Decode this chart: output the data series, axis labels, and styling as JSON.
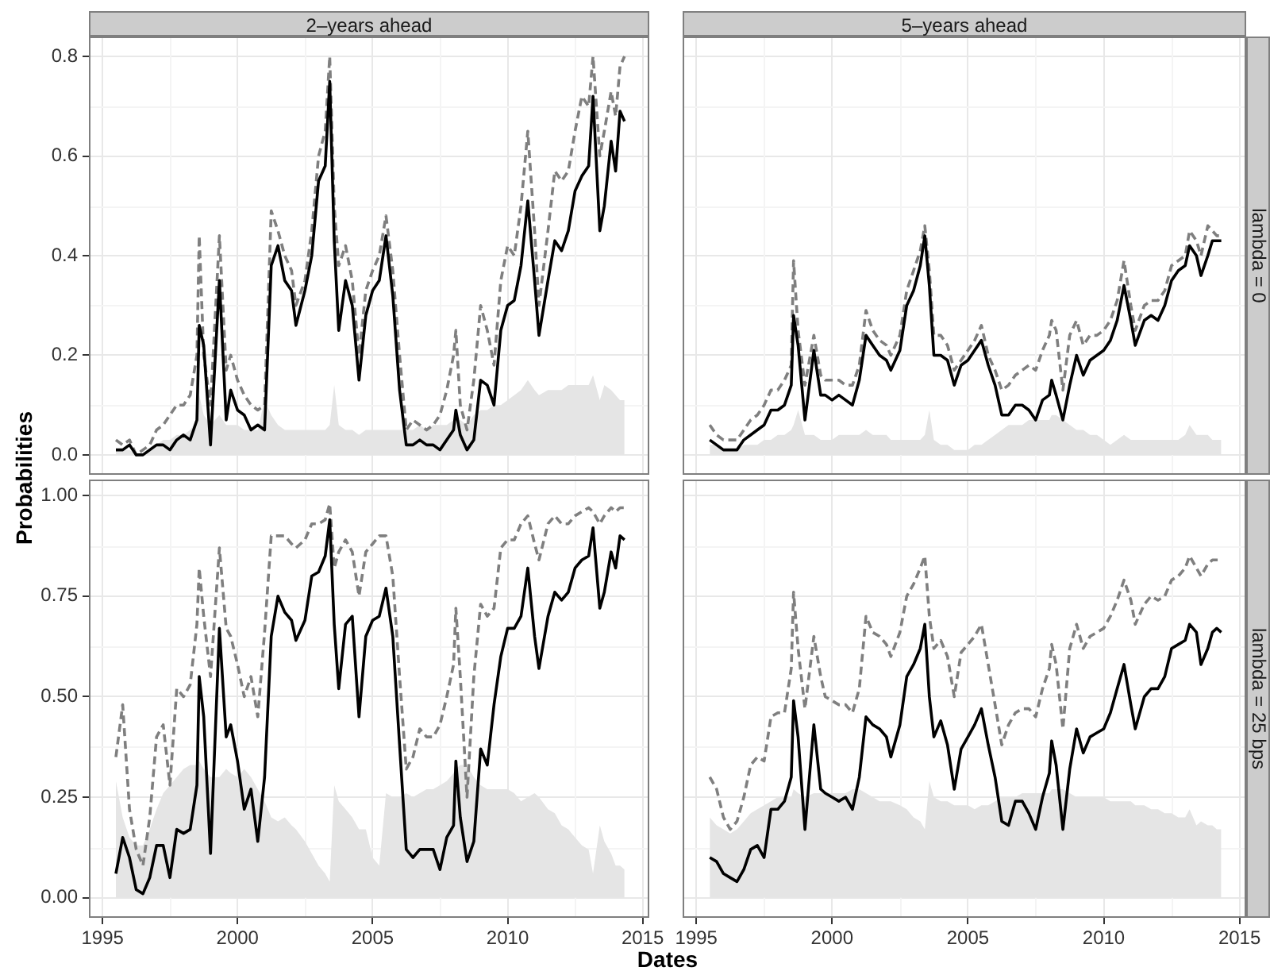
{
  "chart_data": [
    {
      "type": "line",
      "title": "2–years ahead",
      "ylabel": "Probabilities",
      "x": [
        "1995-07",
        "1995-10",
        "1996-01",
        "1996-04",
        "1996-07",
        "1996-10",
        "1997-01",
        "1997-04",
        "1997-07",
        "1997-10",
        "1998-01",
        "1998-04",
        "1998-07",
        "1998-08",
        "1998-10",
        "1999-01",
        "1999-05",
        "1999-08",
        "1999-10",
        "2000-01",
        "2000-04",
        "2000-07",
        "2000-10",
        "2001-01",
        "2001-04",
        "2001-07",
        "2001-10",
        "2002-01",
        "2002-03",
        "2002-07",
        "2002-10",
        "2003-01",
        "2003-04",
        "2003-06",
        "2003-08",
        "2003-10",
        "2004-01",
        "2004-04",
        "2004-07",
        "2004-10",
        "2005-01",
        "2005-04",
        "2005-07",
        "2005-10",
        "2006-01",
        "2006-04",
        "2006-07",
        "2006-10",
        "2007-01",
        "2007-04",
        "2007-07",
        "2007-10",
        "2008-01",
        "2008-02",
        "2008-04",
        "2008-07",
        "2008-10",
        "2009-01",
        "2009-04",
        "2009-07",
        "2009-10",
        "2010-01",
        "2010-04",
        "2010-07",
        "2010-10",
        "2011-01",
        "2011-03",
        "2011-07",
        "2011-10",
        "2012-01",
        "2012-04",
        "2012-07",
        "2012-10",
        "2013-01",
        "2013-03",
        "2013-06",
        "2013-08",
        "2013-11",
        "2014-01",
        "2014-03",
        "2014-05"
      ],
      "xlim": [
        "1994-07",
        "2015-04"
      ],
      "xticks": [
        "1995",
        "2000",
        "2005",
        "2010",
        "2015"
      ],
      "ylim": [
        -0.04,
        0.84
      ],
      "yticks": [
        {
          "value": 0,
          "label": "0.0"
        },
        0.2,
        0.4,
        0.6,
        0.8
      ],
      "grid": true,
      "tick_labels": "y",
      "series": [
        {
          "color": "#000000",
          "values": [
            0.01,
            0.01,
            0.02,
            0,
            0,
            0.01,
            0.02,
            0.02,
            0.01,
            0.03,
            0.04,
            0.03,
            0.07,
            0.26,
            0.22,
            0.02,
            0.35,
            0.07,
            0.13,
            0.09,
            0.08,
            0.05,
            0.06,
            0.05,
            0.38,
            0.42,
            0.35,
            0.33,
            0.26,
            0.33,
            0.4,
            0.55,
            0.58,
            0.75,
            0.43,
            0.25,
            0.35,
            0.3,
            0.15,
            0.28,
            0.33,
            0.35,
            0.44,
            0.32,
            0.13,
            0.02,
            0.02,
            0.03,
            0.02,
            0.02,
            0.01,
            0.03,
            0.05,
            0.09,
            0.04,
            0.01,
            0.03,
            0.15,
            0.14,
            0.1,
            0.25,
            0.3,
            0.31,
            0.38,
            0.51,
            0.35,
            0.24,
            0.35,
            0.43,
            0.41,
            0.45,
            0.53,
            0.56,
            0.58,
            0.72,
            0.45,
            0.5,
            0.63,
            0.57,
            0.69,
            0.67
          ]
        },
        {
          "color": "#7f7f7f",
          "line_style": "dashed",
          "values": [
            0.03,
            0.02,
            0.03,
            0,
            0.01,
            0.02,
            0.05,
            0.06,
            0.08,
            0.1,
            0.1,
            0.12,
            0.2,
            0.44,
            0.2,
            0.1,
            0.44,
            0.17,
            0.2,
            0.15,
            0.12,
            0.1,
            0.09,
            0.1,
            0.49,
            0.45,
            0.4,
            0.37,
            0.3,
            0.35,
            0.45,
            0.6,
            0.65,
            0.8,
            0.5,
            0.38,
            0.42,
            0.35,
            0.2,
            0.33,
            0.37,
            0.4,
            0.48,
            0.37,
            0.2,
            0.05,
            0.07,
            0.06,
            0.05,
            0.06,
            0.08,
            0.13,
            0.2,
            0.25,
            0.1,
            0.05,
            0.15,
            0.3,
            0.25,
            0.18,
            0.35,
            0.42,
            0.4,
            0.5,
            0.65,
            0.45,
            0.3,
            0.45,
            0.57,
            0.55,
            0.57,
            0.65,
            0.72,
            0.7,
            0.8,
            0.6,
            0.65,
            0.73,
            0.68,
            0.78,
            0.8
          ]
        },
        {
          "type": "area",
          "color": "#e5e5e5",
          "values": [
            0.01,
            0.01,
            0.01,
            0,
            0,
            0.01,
            0.02,
            0.03,
            0.03,
            0.04,
            0.04,
            0.05,
            0.07,
            0.12,
            0.08,
            0.06,
            0.08,
            0.06,
            0.06,
            0.06,
            0.05,
            0.05,
            0.05,
            0.11,
            0.08,
            0.06,
            0.05,
            0.05,
            0.05,
            0.05,
            0.05,
            0.05,
            0.05,
            0.06,
            0.14,
            0.06,
            0.05,
            0.05,
            0.04,
            0.05,
            0.05,
            0.05,
            0.05,
            0.05,
            0.05,
            0.05,
            0.05,
            0.06,
            0.05,
            0.06,
            0.06,
            0.06,
            0.07,
            0.07,
            0.07,
            0.06,
            0.08,
            0.09,
            0.09,
            0.1,
            0.1,
            0.11,
            0.12,
            0.13,
            0.15,
            0.13,
            0.12,
            0.13,
            0.13,
            0.13,
            0.14,
            0.14,
            0.14,
            0.14,
            0.16,
            0.11,
            0.14,
            0.13,
            0.12,
            0.11,
            0.11
          ]
        }
      ]
    },
    {
      "type": "line",
      "title": "5–years ahead",
      "annotations": [
        "lambda = 0"
      ],
      "x": [
        "1995-07",
        "1995-10",
        "1996-01",
        "1996-04",
        "1996-07",
        "1996-10",
        "1997-01",
        "1997-04",
        "1997-07",
        "1997-10",
        "1998-01",
        "1998-04",
        "1998-07",
        "1998-08",
        "1998-10",
        "1999-01",
        "1999-05",
        "1999-08",
        "1999-10",
        "2000-01",
        "2000-04",
        "2000-07",
        "2000-10",
        "2001-01",
        "2001-04",
        "2001-07",
        "2001-10",
        "2002-01",
        "2002-03",
        "2002-07",
        "2002-10",
        "2003-01",
        "2003-04",
        "2003-06",
        "2003-08",
        "2003-10",
        "2004-01",
        "2004-04",
        "2004-07",
        "2004-10",
        "2005-01",
        "2005-04",
        "2005-07",
        "2005-10",
        "2006-01",
        "2006-04",
        "2006-07",
        "2006-10",
        "2007-01",
        "2007-04",
        "2007-07",
        "2007-10",
        "2008-01",
        "2008-02",
        "2008-04",
        "2008-07",
        "2008-10",
        "2009-01",
        "2009-04",
        "2009-07",
        "2009-10",
        "2010-01",
        "2010-04",
        "2010-07",
        "2010-10",
        "2011-01",
        "2011-03",
        "2011-07",
        "2011-10",
        "2012-01",
        "2012-04",
        "2012-07",
        "2012-10",
        "2013-01",
        "2013-03",
        "2013-06",
        "2013-08",
        "2013-11",
        "2014-01",
        "2014-03",
        "2014-05"
      ],
      "xlim": [
        "1994-07",
        "2015-04"
      ],
      "xticks": [
        "1995",
        "2000",
        "2005",
        "2010",
        "2015"
      ],
      "ylim": [
        -0.04,
        0.84
      ],
      "yticks": [
        0,
        0.2,
        0.4,
        0.6,
        0.8
      ],
      "grid": true,
      "tick_labels": false,
      "series": [
        {
          "color": "#000000",
          "values": [
            0.03,
            0.02,
            0.01,
            0.01,
            0.01,
            0.03,
            0.04,
            0.05,
            0.06,
            0.09,
            0.09,
            0.1,
            0.14,
            0.28,
            0.22,
            0.07,
            0.21,
            0.12,
            0.12,
            0.11,
            0.12,
            0.11,
            0.1,
            0.15,
            0.24,
            0.22,
            0.2,
            0.19,
            0.17,
            0.21,
            0.3,
            0.33,
            0.38,
            0.44,
            0.34,
            0.2,
            0.2,
            0.19,
            0.14,
            0.18,
            0.19,
            0.21,
            0.23,
            0.18,
            0.14,
            0.08,
            0.08,
            0.1,
            0.1,
            0.09,
            0.07,
            0.11,
            0.12,
            0.15,
            0.12,
            0.07,
            0.14,
            0.2,
            0.16,
            0.19,
            0.2,
            0.21,
            0.23,
            0.27,
            0.34,
            0.27,
            0.22,
            0.27,
            0.28,
            0.27,
            0.3,
            0.35,
            0.37,
            0.38,
            0.42,
            0.4,
            0.36,
            0.4,
            0.43,
            0.43,
            0.43
          ]
        },
        {
          "color": "#7f7f7f",
          "line_style": "dashed",
          "values": [
            0.06,
            0.04,
            0.03,
            0.03,
            0.03,
            0.05,
            0.07,
            0.08,
            0.1,
            0.13,
            0.13,
            0.15,
            0.18,
            0.39,
            0.25,
            0.14,
            0.24,
            0.16,
            0.15,
            0.15,
            0.15,
            0.14,
            0.14,
            0.18,
            0.29,
            0.25,
            0.23,
            0.22,
            0.2,
            0.24,
            0.33,
            0.37,
            0.41,
            0.46,
            0.37,
            0.24,
            0.24,
            0.22,
            0.17,
            0.19,
            0.21,
            0.23,
            0.26,
            0.2,
            0.17,
            0.13,
            0.14,
            0.16,
            0.17,
            0.18,
            0.17,
            0.21,
            0.24,
            0.27,
            0.25,
            0.13,
            0.24,
            0.27,
            0.22,
            0.24,
            0.24,
            0.25,
            0.27,
            0.31,
            0.39,
            0.3,
            0.25,
            0.3,
            0.31,
            0.31,
            0.33,
            0.38,
            0.39,
            0.4,
            0.45,
            0.43,
            0.4,
            0.46,
            0.45,
            0.44,
            0.44
          ]
        },
        {
          "type": "area",
          "color": "#e5e5e5",
          "values": [
            0.02,
            0.02,
            0.01,
            0.01,
            0.01,
            0.02,
            0.02,
            0.02,
            0.03,
            0.03,
            0.04,
            0.04,
            0.05,
            0.06,
            0.09,
            0.04,
            0.04,
            0.03,
            0.03,
            0.03,
            0.04,
            0.04,
            0.04,
            0.04,
            0.05,
            0.04,
            0.04,
            0.04,
            0.03,
            0.03,
            0.03,
            0.03,
            0.03,
            0.04,
            0.09,
            0.03,
            0.02,
            0.02,
            0.01,
            0.01,
            0.01,
            0.02,
            0.02,
            0.03,
            0.04,
            0.05,
            0.06,
            0.06,
            0.06,
            0.07,
            0.07,
            0.07,
            0.07,
            0.08,
            0.08,
            0.07,
            0.06,
            0.05,
            0.05,
            0.04,
            0.04,
            0.03,
            0.02,
            0.03,
            0.04,
            0.03,
            0.03,
            0.03,
            0.03,
            0.03,
            0.03,
            0.03,
            0.03,
            0.04,
            0.06,
            0.04,
            0.04,
            0.04,
            0.03,
            0.03,
            0.03
          ]
        }
      ]
    },
    {
      "type": "line",
      "xlabel": "Dates",
      "x": [
        "1995-07",
        "1995-10",
        "1996-01",
        "1996-04",
        "1996-07",
        "1996-10",
        "1997-01",
        "1997-04",
        "1997-07",
        "1997-10",
        "1998-01",
        "1998-04",
        "1998-07",
        "1998-08",
        "1998-10",
        "1999-01",
        "1999-05",
        "1999-08",
        "1999-10",
        "2000-01",
        "2000-04",
        "2000-07",
        "2000-10",
        "2001-01",
        "2001-04",
        "2001-07",
        "2001-10",
        "2002-01",
        "2002-03",
        "2002-07",
        "2002-10",
        "2003-01",
        "2003-04",
        "2003-06",
        "2003-08",
        "2003-10",
        "2004-01",
        "2004-04",
        "2004-07",
        "2004-10",
        "2005-01",
        "2005-04",
        "2005-07",
        "2005-10",
        "2006-01",
        "2006-04",
        "2006-07",
        "2006-10",
        "2007-01",
        "2007-04",
        "2007-07",
        "2007-10",
        "2008-01",
        "2008-02",
        "2008-04",
        "2008-07",
        "2008-10",
        "2009-01",
        "2009-04",
        "2009-07",
        "2009-10",
        "2010-01",
        "2010-04",
        "2010-07",
        "2010-10",
        "2011-01",
        "2011-03",
        "2011-07",
        "2011-10",
        "2012-01",
        "2012-04",
        "2012-07",
        "2012-10",
        "2013-01",
        "2013-03",
        "2013-06",
        "2013-08",
        "2013-11",
        "2014-01",
        "2014-03",
        "2014-05"
      ],
      "xlim": [
        "1994-07",
        "2015-04"
      ],
      "xticks": [
        "1995",
        "2000",
        "2005",
        "2010",
        "2015"
      ],
      "ylim": [
        -0.05,
        1.04
      ],
      "yticks": [
        {
          "value": 0,
          "label": "0.00"
        },
        0.25,
        {
          "value": 0.5,
          "label": "0.50"
        },
        0.75,
        {
          "value": 1,
          "label": "1.00"
        }
      ],
      "grid": true,
      "series": [
        {
          "color": "#000000",
          "values": [
            0.06,
            0.15,
            0.1,
            0.02,
            0.01,
            0.05,
            0.13,
            0.13,
            0.05,
            0.17,
            0.16,
            0.17,
            0.28,
            0.55,
            0.45,
            0.11,
            0.67,
            0.4,
            0.43,
            0.34,
            0.22,
            0.27,
            0.14,
            0.3,
            0.65,
            0.75,
            0.71,
            0.69,
            0.64,
            0.69,
            0.8,
            0.81,
            0.85,
            0.94,
            0.68,
            0.52,
            0.68,
            0.7,
            0.45,
            0.65,
            0.69,
            0.7,
            0.77,
            0.65,
            0.38,
            0.12,
            0.1,
            0.12,
            0.12,
            0.12,
            0.07,
            0.15,
            0.18,
            0.34,
            0.2,
            0.09,
            0.14,
            0.37,
            0.33,
            0.48,
            0.6,
            0.67,
            0.67,
            0.7,
            0.82,
            0.65,
            0.57,
            0.7,
            0.76,
            0.74,
            0.76,
            0.82,
            0.84,
            0.85,
            0.92,
            0.72,
            0.76,
            0.86,
            0.82,
            0.9,
            0.89
          ]
        },
        {
          "color": "#7f7f7f",
          "line_style": "dashed",
          "values": [
            0.35,
            0.48,
            0.22,
            0.12,
            0.08,
            0.2,
            0.4,
            0.43,
            0.28,
            0.52,
            0.5,
            0.53,
            0.68,
            0.82,
            0.7,
            0.55,
            0.87,
            0.67,
            0.65,
            0.58,
            0.5,
            0.55,
            0.45,
            0.66,
            0.9,
            0.9,
            0.9,
            0.88,
            0.87,
            0.89,
            0.93,
            0.93,
            0.94,
            0.98,
            0.82,
            0.86,
            0.89,
            0.86,
            0.75,
            0.86,
            0.88,
            0.9,
            0.9,
            0.8,
            0.55,
            0.32,
            0.35,
            0.42,
            0.4,
            0.4,
            0.43,
            0.5,
            0.58,
            0.72,
            0.55,
            0.25,
            0.55,
            0.73,
            0.7,
            0.72,
            0.87,
            0.89,
            0.89,
            0.93,
            0.95,
            0.88,
            0.84,
            0.93,
            0.95,
            0.93,
            0.93,
            0.95,
            0.96,
            0.97,
            0.96,
            0.93,
            0.95,
            0.97,
            0.96,
            0.97,
            0.97
          ]
        },
        {
          "type": "area",
          "color": "#e5e5e5",
          "values": [
            0.29,
            0.2,
            0.15,
            0.13,
            0.13,
            0.17,
            0.22,
            0.26,
            0.28,
            0.3,
            0.32,
            0.33,
            0.33,
            0.34,
            0.32,
            0.3,
            0.3,
            0.32,
            0.31,
            0.3,
            0.32,
            0.3,
            0.27,
            0.24,
            0.2,
            0.19,
            0.2,
            0.18,
            0.17,
            0.14,
            0.11,
            0.08,
            0.06,
            0.04,
            0.28,
            0.24,
            0.22,
            0.2,
            0.17,
            0.17,
            0.1,
            0.08,
            0.26,
            0.25,
            0.25,
            0.26,
            0.25,
            0.26,
            0.27,
            0.27,
            0.28,
            0.29,
            0.31,
            0.32,
            0.33,
            0.33,
            0.3,
            0.28,
            0.27,
            0.27,
            0.27,
            0.27,
            0.26,
            0.24,
            0.25,
            0.26,
            0.25,
            0.22,
            0.21,
            0.18,
            0.17,
            0.15,
            0.13,
            0.12,
            0.06,
            0.18,
            0.14,
            0.11,
            0.08,
            0.08,
            0.07
          ]
        }
      ]
    },
    {
      "type": "line",
      "annotations": [
        "lambda = 25 bps"
      ],
      "x": [
        "1995-07",
        "1995-10",
        "1996-01",
        "1996-04",
        "1996-07",
        "1996-10",
        "1997-01",
        "1997-04",
        "1997-07",
        "1997-10",
        "1998-01",
        "1998-04",
        "1998-07",
        "1998-08",
        "1998-10",
        "1999-01",
        "1999-05",
        "1999-08",
        "1999-10",
        "2000-01",
        "2000-04",
        "2000-07",
        "2000-10",
        "2001-01",
        "2001-04",
        "2001-07",
        "2001-10",
        "2002-01",
        "2002-03",
        "2002-07",
        "2002-10",
        "2003-01",
        "2003-04",
        "2003-06",
        "2003-08",
        "2003-10",
        "2004-01",
        "2004-04",
        "2004-07",
        "2004-10",
        "2005-01",
        "2005-04",
        "2005-07",
        "2005-10",
        "2006-01",
        "2006-04",
        "2006-07",
        "2006-10",
        "2007-01",
        "2007-04",
        "2007-07",
        "2007-10",
        "2008-01",
        "2008-02",
        "2008-04",
        "2008-07",
        "2008-10",
        "2009-01",
        "2009-04",
        "2009-07",
        "2009-10",
        "2010-01",
        "2010-04",
        "2010-07",
        "2010-10",
        "2011-01",
        "2011-03",
        "2011-07",
        "2011-10",
        "2012-01",
        "2012-04",
        "2012-07",
        "2012-10",
        "2013-01",
        "2013-03",
        "2013-06",
        "2013-08",
        "2013-11",
        "2014-01",
        "2014-03",
        "2014-05"
      ],
      "xlim": [
        "1994-07",
        "2015-04"
      ],
      "xticks": [
        "1995",
        "2000",
        "2005",
        "2010",
        "2015"
      ],
      "ylim": [
        -0.05,
        1.04
      ],
      "yticks": [
        0,
        0.25,
        0.5,
        0.75,
        1
      ],
      "grid": true,
      "tick_labels": "x",
      "series": [
        {
          "color": "#000000",
          "values": [
            0.1,
            0.09,
            0.06,
            0.05,
            0.04,
            0.07,
            0.12,
            0.13,
            0.1,
            0.22,
            0.22,
            0.24,
            0.3,
            0.49,
            0.4,
            0.17,
            0.43,
            0.27,
            0.26,
            0.25,
            0.24,
            0.25,
            0.22,
            0.3,
            0.45,
            0.43,
            0.42,
            0.4,
            0.35,
            0.43,
            0.55,
            0.58,
            0.62,
            0.68,
            0.5,
            0.4,
            0.44,
            0.38,
            0.27,
            0.37,
            0.4,
            0.43,
            0.47,
            0.38,
            0.3,
            0.19,
            0.18,
            0.24,
            0.24,
            0.21,
            0.17,
            0.25,
            0.31,
            0.39,
            0.33,
            0.17,
            0.32,
            0.42,
            0.36,
            0.4,
            0.41,
            0.42,
            0.46,
            0.52,
            0.58,
            0.48,
            0.42,
            0.5,
            0.52,
            0.52,
            0.55,
            0.62,
            0.63,
            0.64,
            0.68,
            0.66,
            0.58,
            0.62,
            0.66,
            0.67,
            0.66
          ]
        },
        {
          "color": "#7f7f7f",
          "line_style": "dashed",
          "values": [
            0.3,
            0.27,
            0.2,
            0.17,
            0.19,
            0.25,
            0.33,
            0.35,
            0.34,
            0.45,
            0.46,
            0.46,
            0.57,
            0.76,
            0.62,
            0.47,
            0.65,
            0.55,
            0.5,
            0.49,
            0.48,
            0.48,
            0.46,
            0.52,
            0.7,
            0.66,
            0.65,
            0.63,
            0.6,
            0.66,
            0.75,
            0.78,
            0.82,
            0.85,
            0.7,
            0.62,
            0.64,
            0.6,
            0.5,
            0.61,
            0.63,
            0.65,
            0.68,
            0.58,
            0.48,
            0.38,
            0.43,
            0.46,
            0.47,
            0.47,
            0.45,
            0.52,
            0.57,
            0.63,
            0.58,
            0.42,
            0.62,
            0.68,
            0.62,
            0.65,
            0.66,
            0.67,
            0.7,
            0.74,
            0.79,
            0.74,
            0.68,
            0.73,
            0.75,
            0.74,
            0.75,
            0.79,
            0.8,
            0.82,
            0.85,
            0.82,
            0.8,
            0.83,
            0.84,
            0.84,
            0.84
          ]
        },
        {
          "type": "area",
          "color": "#e5e5e5",
          "values": [
            0.2,
            0.18,
            0.17,
            0.16,
            0.17,
            0.19,
            0.21,
            0.22,
            0.23,
            0.24,
            0.25,
            0.25,
            0.25,
            0.27,
            0.26,
            0.25,
            0.26,
            0.26,
            0.26,
            0.26,
            0.26,
            0.26,
            0.27,
            0.27,
            0.26,
            0.25,
            0.24,
            0.24,
            0.24,
            0.23,
            0.22,
            0.2,
            0.19,
            0.17,
            0.29,
            0.25,
            0.24,
            0.24,
            0.23,
            0.23,
            0.23,
            0.22,
            0.23,
            0.23,
            0.24,
            0.25,
            0.25,
            0.25,
            0.26,
            0.26,
            0.26,
            0.26,
            0.26,
            0.27,
            0.27,
            0.27,
            0.26,
            0.25,
            0.25,
            0.25,
            0.25,
            0.25,
            0.24,
            0.24,
            0.24,
            0.24,
            0.23,
            0.23,
            0.22,
            0.22,
            0.21,
            0.21,
            0.2,
            0.2,
            0.22,
            0.18,
            0.19,
            0.18,
            0.18,
            0.17,
            0.17
          ]
        }
      ]
    }
  ]
}
